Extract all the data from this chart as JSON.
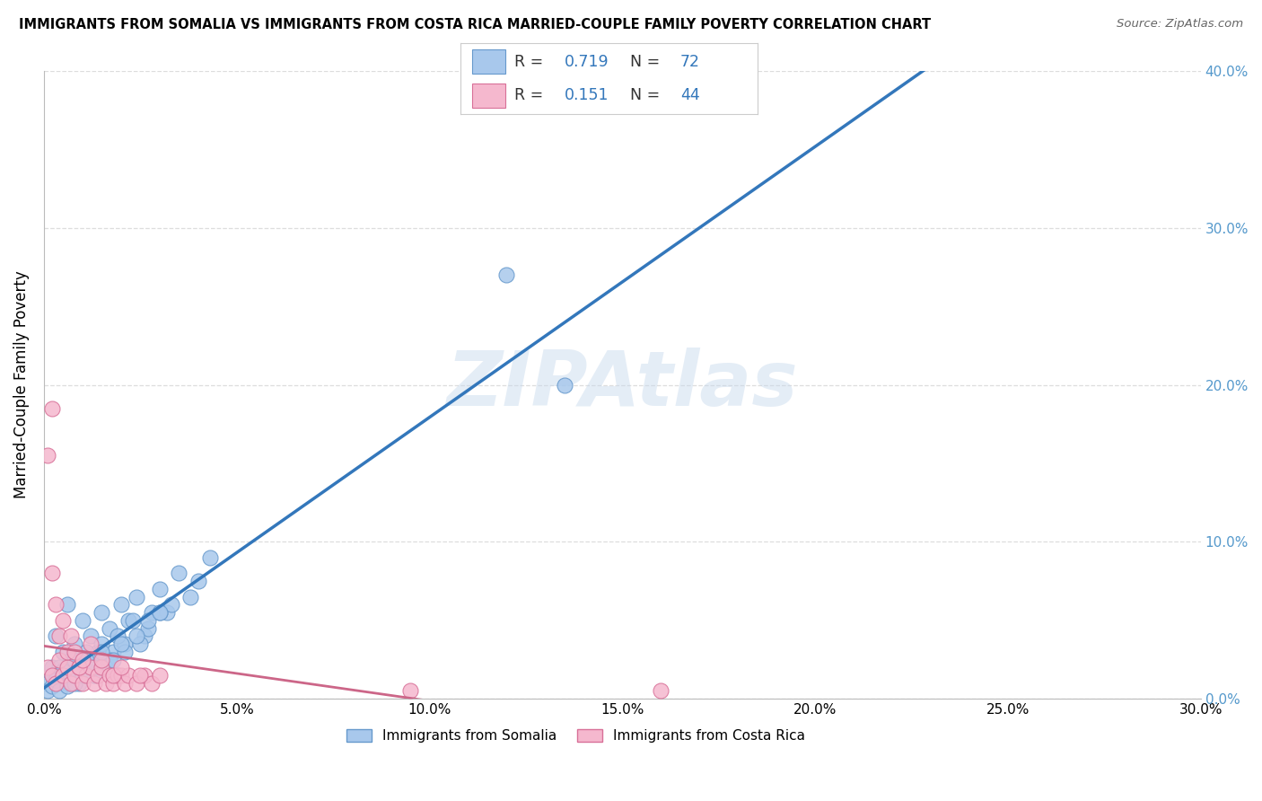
{
  "title": "IMMIGRANTS FROM SOMALIA VS IMMIGRANTS FROM COSTA RICA MARRIED-COUPLE FAMILY POVERTY CORRELATION CHART",
  "source": "Source: ZipAtlas.com",
  "ylabel": "Married-Couple Family Poverty",
  "xlim": [
    0.0,
    0.3
  ],
  "ylim": [
    0.0,
    0.4
  ],
  "xtick_vals": [
    0.0,
    0.05,
    0.1,
    0.15,
    0.2,
    0.25,
    0.3
  ],
  "xtick_labels": [
    "0.0%",
    "5.0%",
    "10.0%",
    "15.0%",
    "20.0%",
    "25.0%",
    "30.0%"
  ],
  "ytick_vals": [
    0.0,
    0.1,
    0.2,
    0.3,
    0.4
  ],
  "ytick_labels": [
    "0.0%",
    "10.0%",
    "20.0%",
    "30.0%",
    "40.0%"
  ],
  "somalia_color": "#A8C8EC",
  "somalia_edge": "#6699CC",
  "costa_rica_color": "#F5B8CE",
  "costa_rica_edge": "#D87098",
  "somalia_R": "0.719",
  "somalia_N": "72",
  "costa_rica_R": "0.151",
  "costa_rica_N": "44",
  "somalia_line_color": "#3377BB",
  "costa_rica_line_solid_color": "#CC6688",
  "costa_rica_line_dashed_color": "#DDAACC",
  "right_axis_color": "#5599CC",
  "watermark": "ZIPAtlas",
  "legend_label_somalia": "Immigrants from Somalia",
  "legend_label_costa_rica": "Immigrants from Costa Rica",
  "r_n_color": "#3377BB",
  "text_color": "#333333",
  "grid_color": "#DDDDDD",
  "background": "#FFFFFF",
  "somalia_x": [
    0.002,
    0.003,
    0.004,
    0.005,
    0.006,
    0.007,
    0.008,
    0.009,
    0.01,
    0.011,
    0.012,
    0.013,
    0.014,
    0.015,
    0.016,
    0.017,
    0.018,
    0.019,
    0.02,
    0.021,
    0.022,
    0.024,
    0.026,
    0.028,
    0.03,
    0.032,
    0.035,
    0.038,
    0.04,
    0.043,
    0.001,
    0.002,
    0.003,
    0.004,
    0.005,
    0.006,
    0.007,
    0.008,
    0.009,
    0.01,
    0.011,
    0.012,
    0.013,
    0.015,
    0.017,
    0.019,
    0.021,
    0.023,
    0.025,
    0.027,
    0.03,
    0.033,
    0.001,
    0.002,
    0.003,
    0.004,
    0.005,
    0.006,
    0.007,
    0.008,
    0.009,
    0.01,
    0.011,
    0.013,
    0.015,
    0.018,
    0.02,
    0.024,
    0.027,
    0.03,
    0.12,
    0.135
  ],
  "somalia_y": [
    0.02,
    0.04,
    0.015,
    0.03,
    0.06,
    0.025,
    0.035,
    0.015,
    0.05,
    0.025,
    0.04,
    0.015,
    0.03,
    0.055,
    0.02,
    0.045,
    0.03,
    0.015,
    0.06,
    0.035,
    0.05,
    0.065,
    0.04,
    0.055,
    0.07,
    0.055,
    0.08,
    0.065,
    0.075,
    0.09,
    0.01,
    0.015,
    0.01,
    0.02,
    0.015,
    0.01,
    0.02,
    0.025,
    0.01,
    0.02,
    0.03,
    0.025,
    0.015,
    0.035,
    0.025,
    0.04,
    0.03,
    0.05,
    0.035,
    0.045,
    0.055,
    0.06,
    0.005,
    0.008,
    0.012,
    0.005,
    0.018,
    0.008,
    0.015,
    0.01,
    0.02,
    0.015,
    0.025,
    0.02,
    0.03,
    0.025,
    0.035,
    0.04,
    0.05,
    0.055,
    0.27,
    0.2
  ],
  "costa_rica_x": [
    0.001,
    0.002,
    0.003,
    0.004,
    0.005,
    0.006,
    0.007,
    0.008,
    0.009,
    0.01,
    0.011,
    0.012,
    0.013,
    0.014,
    0.015,
    0.016,
    0.017,
    0.018,
    0.019,
    0.02,
    0.021,
    0.022,
    0.024,
    0.026,
    0.028,
    0.03,
    0.002,
    0.003,
    0.004,
    0.005,
    0.006,
    0.007,
    0.008,
    0.009,
    0.01,
    0.012,
    0.015,
    0.018,
    0.02,
    0.025,
    0.001,
    0.002,
    0.095,
    0.16
  ],
  "costa_rica_y": [
    0.02,
    0.015,
    0.01,
    0.025,
    0.015,
    0.02,
    0.01,
    0.015,
    0.02,
    0.01,
    0.015,
    0.02,
    0.01,
    0.015,
    0.02,
    0.01,
    0.015,
    0.01,
    0.015,
    0.015,
    0.01,
    0.015,
    0.01,
    0.015,
    0.01,
    0.015,
    0.08,
    0.06,
    0.04,
    0.05,
    0.03,
    0.04,
    0.03,
    0.02,
    0.025,
    0.035,
    0.025,
    0.015,
    0.02,
    0.015,
    0.155,
    0.185,
    0.005,
    0.005
  ]
}
